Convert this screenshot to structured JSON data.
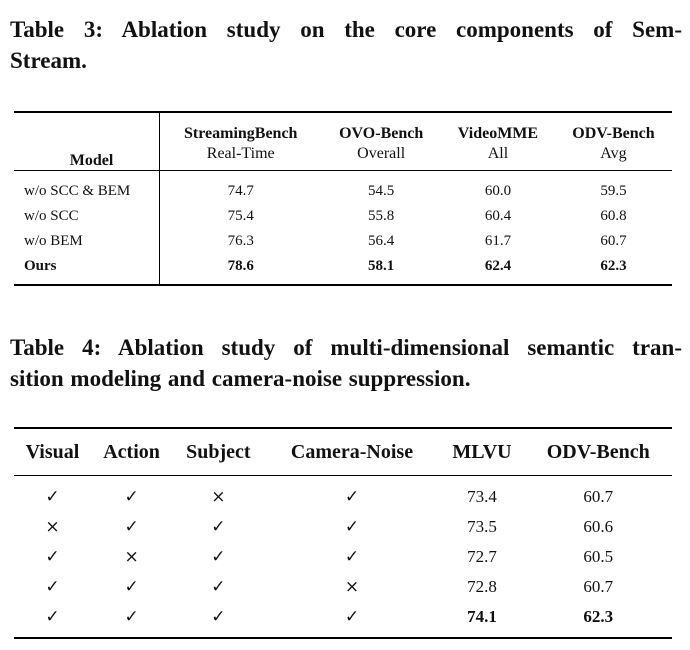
{
  "table3": {
    "caption_lines": [
      "Table 3: Ablation study on the core components of Sem-",
      "Stream."
    ],
    "model_header": "Model",
    "columns": [
      {
        "name": "StreamingBench",
        "sub": "Real-Time"
      },
      {
        "name": "OVO-Bench",
        "sub": "Overall"
      },
      {
        "name": "VideoMME",
        "sub": "All"
      },
      {
        "name": "ODV-Bench",
        "sub": "Avg"
      }
    ],
    "rows": [
      {
        "model": "w/o SCC & BEM",
        "values": [
          "74.7",
          "54.5",
          "60.0",
          "59.5"
        ]
      },
      {
        "model": "w/o SCC",
        "values": [
          "75.4",
          "55.8",
          "60.4",
          "60.8"
        ]
      },
      {
        "model": "w/o BEM",
        "values": [
          "76.3",
          "56.4",
          "61.7",
          "60.7"
        ]
      },
      {
        "model": "Ours",
        "values": [
          "78.6",
          "58.1",
          "62.4",
          "62.3"
        ]
      }
    ]
  },
  "table4": {
    "caption_lines": [
      "Table 4: Ablation study of multi-dimensional semantic tran-",
      "sition modeling and camera-noise suppression."
    ],
    "headers": [
      "Visual",
      "Action",
      "Subject",
      "Camera-Noise",
      "MLVU",
      "ODV-Bench"
    ],
    "rows": [
      [
        "✓",
        "✓",
        "×",
        "✓",
        "73.4",
        "60.7"
      ],
      [
        "×",
        "✓",
        "✓",
        "✓",
        "73.5",
        "60.6"
      ],
      [
        "✓",
        "×",
        "✓",
        "✓",
        "72.7",
        "60.5"
      ],
      [
        "✓",
        "✓",
        "✓",
        "×",
        "72.8",
        "60.7"
      ],
      [
        "✓",
        "✓",
        "✓",
        "✓",
        "74.1",
        "62.3"
      ]
    ]
  }
}
